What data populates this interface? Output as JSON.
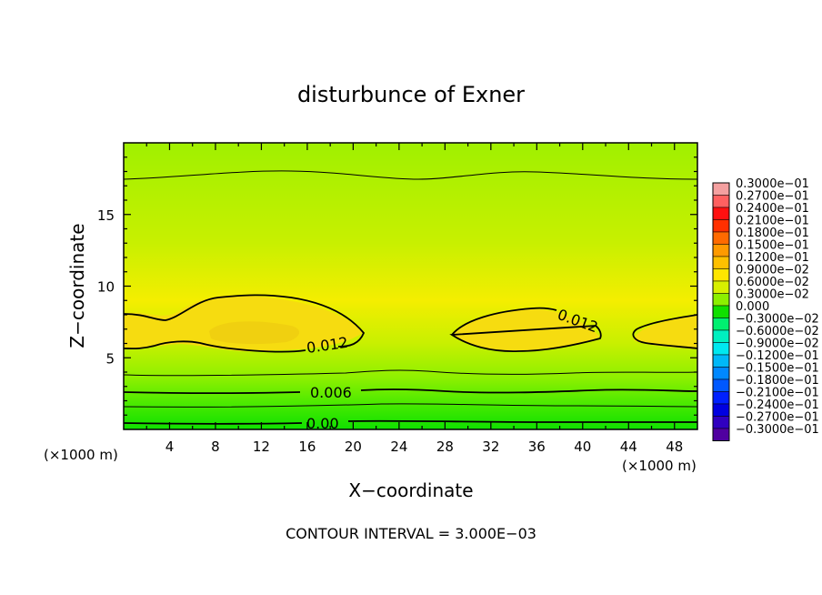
{
  "chart_data": {
    "type": "heatmap",
    "title": "disturbunce of Exner",
    "xlabel": "X−coordinate",
    "ylabel": "Z−coordinate",
    "x_unit": "(×1000 m)",
    "y_unit": "(×1000 m)",
    "xlim": [
      0,
      50
    ],
    "ylim": [
      0,
      20
    ],
    "x_ticks": [
      4,
      8,
      12,
      16,
      20,
      24,
      28,
      32,
      36,
      40,
      44,
      48
    ],
    "y_ticks": [
      5,
      10,
      15
    ],
    "contour_labels": [
      "0.012",
      "0.012",
      "0.006",
      "0.00"
    ],
    "footer": "CONTOUR INTERVAL = 3.000E−03",
    "colorbar_labels": [
      "0.3000e−01",
      "0.2700e−01",
      "0.2400e−01",
      "0.2100e−01",
      "0.1800e−01",
      "0.1500e−01",
      "0.1200e−01",
      "0.9000e−02",
      "0.6000e−02",
      "0.3000e−02",
      "0.000",
      "−0.3000e−02",
      "−0.6000e−02",
      "−0.9000e−02",
      "−0.1200e−01",
      "−0.1500e−01",
      "−0.1800e−01",
      "−0.2100e−01",
      "−0.2400e−01",
      "−0.2700e−01",
      "−0.3000e−01"
    ],
    "colorbar_colors": [
      "#f4a0a0",
      "#ff6060",
      "#ff1010",
      "#ff3000",
      "#ff6a00",
      "#ff9a00",
      "#ffc000",
      "#ffe600",
      "#d8f000",
      "#8cf000",
      "#10e000",
      "#00f070",
      "#00f0c0",
      "#00e8f0",
      "#00b8f8",
      "#0088ff",
      "#0058ff",
      "#0020ff",
      "#0000e0",
      "#3000c0",
      "#5000a0"
    ]
  }
}
